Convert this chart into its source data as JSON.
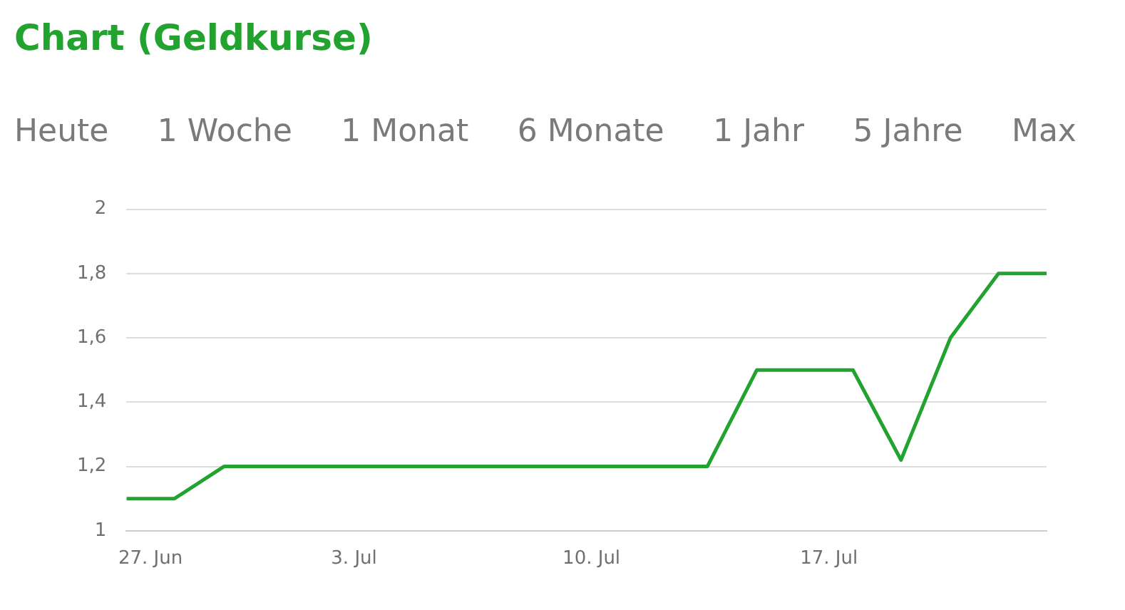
{
  "chart_data": {
    "type": "line",
    "title": "Chart (Geldkurse)",
    "annotations": [
      "Heute",
      "1 Woche",
      "1 Monat",
      "6 Monate",
      "1 Jahr",
      "5 Jahre",
      "Max"
    ],
    "x": [
      "--06-26T07:00",
      "--06-27T17:00",
      "--06-29T04:00",
      "--07-13T10:00",
      "--07-14T21:00",
      "--07-17T17:00",
      "--07-19T03:00",
      "--07-20T14:00",
      "--07-22T00:00",
      "--07-23T10:00"
    ],
    "series": [
      {
        "color": "#22a22e",
        "values": [
          1.1,
          1.1,
          1.2,
          1.2,
          1.5,
          1.5,
          1.22,
          1.6,
          1.8,
          1.8
        ]
      }
    ],
    "ylim": [
      1,
      2
    ],
    "yticks": [
      1,
      {
        "value": 1.2,
        "label": "1,2"
      },
      {
        "value": 1.4,
        "label": "1,4"
      },
      {
        "value": 1.6,
        "label": "1,6"
      },
      {
        "value": 1.8,
        "label": "1,8"
      },
      2
    ],
    "xlim": [
      "--06-26T07:00",
      "--07-23T10:00"
    ],
    "xticks": [
      {
        "value": "--06-27",
        "label": "27. Jun"
      },
      {
        "value": "--07-03",
        "label": "3. Jul"
      },
      {
        "value": "--07-10",
        "label": "10. Jul"
      },
      {
        "value": "--07-17",
        "label": "17. Jul"
      }
    ],
    "grid": "y",
    "legend": false,
    "marker": "none",
    "line_style": "solid"
  }
}
